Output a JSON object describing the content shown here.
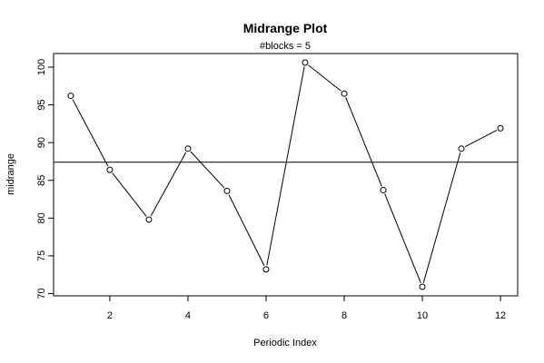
{
  "chart_data": {
    "type": "line",
    "title": "Midrange Plot",
    "subtitle": "#blocks =  5",
    "xlabel": "Periodic Index",
    "ylabel": "midrange",
    "x": [
      1,
      2,
      3,
      4,
      5,
      6,
      7,
      8,
      9,
      10,
      11,
      12
    ],
    "values": [
      96.2,
      86.4,
      79.8,
      89.2,
      83.6,
      73.2,
      100.6,
      96.5,
      83.7,
      70.9,
      89.2,
      91.9
    ],
    "reference_line": 87.4,
    "xlim": [
      0.56,
      12.44
    ],
    "ylim": [
      69.7,
      101.8
    ],
    "xticks": [
      2,
      4,
      6,
      8,
      10,
      12
    ],
    "yticks": [
      70,
      75,
      80,
      85,
      90,
      95,
      100
    ],
    "markers": "open-circle",
    "grid": false
  }
}
